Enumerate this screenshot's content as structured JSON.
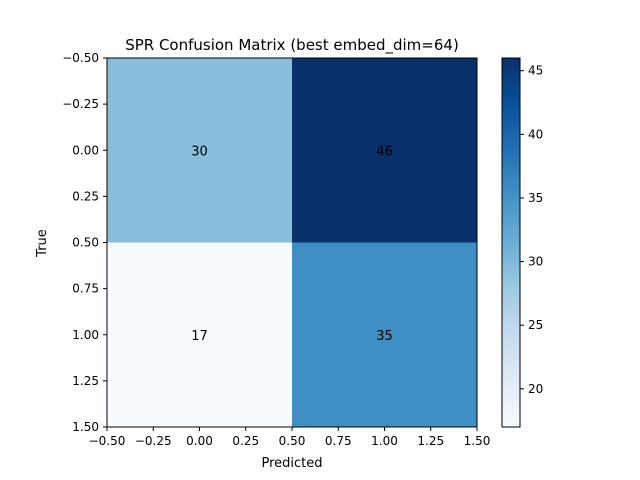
{
  "chart_data": {
    "type": "heatmap",
    "title": "SPR Confusion Matrix (best embed_dim=64)",
    "xlabel": "Predicted",
    "ylabel": "True",
    "matrix": [
      [
        30,
        46
      ],
      [
        17,
        35
      ]
    ],
    "annotations": [
      "30",
      "46",
      "17",
      "35"
    ],
    "x_ticks": [
      "−0.50",
      "−0.25",
      "0.00",
      "0.25",
      "0.50",
      "0.75",
      "1.00",
      "1.25",
      "1.50"
    ],
    "y_ticks": [
      "−0.50",
      "−0.25",
      "0.00",
      "0.25",
      "0.50",
      "0.75",
      "1.00",
      "1.25",
      "1.50"
    ],
    "xlim": [
      -0.5,
      1.5
    ],
    "ylim": [
      1.5,
      -0.5
    ],
    "colormap": "Blues",
    "colorbar": {
      "range": [
        17,
        46
      ],
      "ticks": [
        "20",
        "25",
        "30",
        "35",
        "40",
        "45"
      ]
    },
    "cell_colors": {
      "30": "#88bedc",
      "46": "#08306b",
      "17": "#f7fbff",
      "35": "#3f8fc5"
    },
    "colorbar_gradient": [
      "#f7fbff",
      "#deebf7",
      "#c6dbef",
      "#9ecae1",
      "#6baed6",
      "#4292c6",
      "#2171b5",
      "#08519c",
      "#08306b"
    ]
  }
}
